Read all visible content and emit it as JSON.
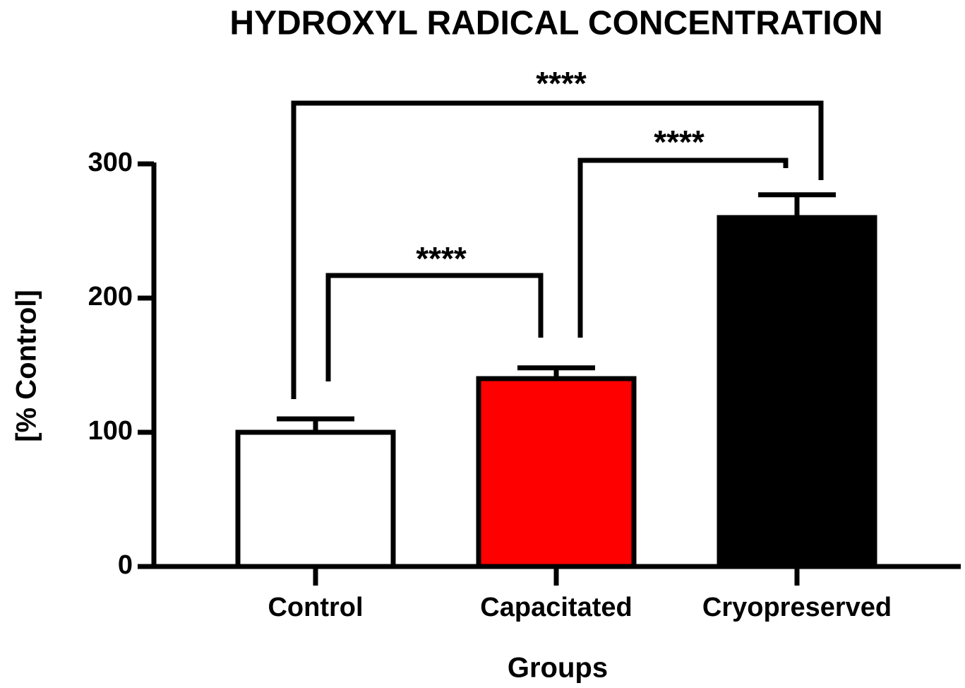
{
  "chart_data": {
    "type": "bar",
    "title": "HYDROXYL RADICAL CONCENTRATION",
    "xlabel": "Groups",
    "ylabel": "[% Control]",
    "categories": [
      "Control",
      "Capacitated",
      "Cryopreserved"
    ],
    "values": [
      100,
      140,
      260
    ],
    "errors": [
      10,
      8,
      17
    ],
    "colors": [
      "#ffffff",
      "#ff0000",
      "#000000"
    ],
    "ylim": [
      0,
      300
    ],
    "yticks": [
      0,
      100,
      200,
      300
    ],
    "annotations": [
      "****",
      "****",
      "****"
    ]
  }
}
